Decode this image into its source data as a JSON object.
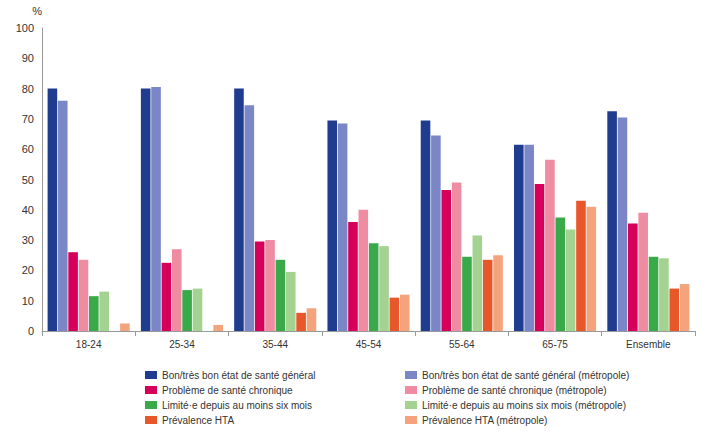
{
  "chart_data": {
    "type": "bar",
    "y_label": "%",
    "categories": [
      "18-24",
      "25-34",
      "35-44",
      "45-54",
      "55-64",
      "65-75",
      "Ensemble"
    ],
    "series": [
      {
        "name": "Bon/très bon état de santé général",
        "color": "#1f3c8f",
        "values": [
          80,
          80,
          80,
          69.5,
          69.5,
          61.5,
          72.5
        ]
      },
      {
        "name": "Bon/très bon état de santé général (métropole)",
        "color": "#7b86c6",
        "values": [
          76,
          80.5,
          74.5,
          68.5,
          64.5,
          61.5,
          70.5
        ]
      },
      {
        "name": "Problème de santé chronique",
        "color": "#d6005a",
        "values": [
          26,
          22.5,
          29.5,
          36,
          46.5,
          48.5,
          35.5
        ]
      },
      {
        "name": "Problème de santé chronique (métropole)",
        "color": "#f08ca2",
        "values": [
          23.5,
          27,
          30,
          40,
          49,
          56.5,
          39
        ]
      },
      {
        "name": "Limité·e depuis au moins six mois",
        "color": "#3aa94a",
        "values": [
          11.5,
          13.5,
          23.5,
          29,
          24.5,
          37.5,
          24.5
        ]
      },
      {
        "name": "Limité·e depuis au moins six mois (métropole)",
        "color": "#a3d291",
        "values": [
          13,
          14,
          19.5,
          28,
          31.5,
          33.5,
          24
        ]
      },
      {
        "name": "Prévalence HTA",
        "color": "#e8572a",
        "values": [
          null,
          null,
          6,
          11,
          23.5,
          43,
          14
        ]
      },
      {
        "name": "Prévalence HTA (métropole)",
        "color": "#f4a47c",
        "values": [
          2.5,
          2,
          7.5,
          12,
          25,
          41,
          15.5
        ]
      }
    ],
    "ylim": [
      0,
      100
    ],
    "yticks": [
      0,
      10,
      20,
      30,
      40,
      50,
      60,
      70,
      80,
      90,
      100
    ],
    "grid": false,
    "legend": "bottom"
  }
}
